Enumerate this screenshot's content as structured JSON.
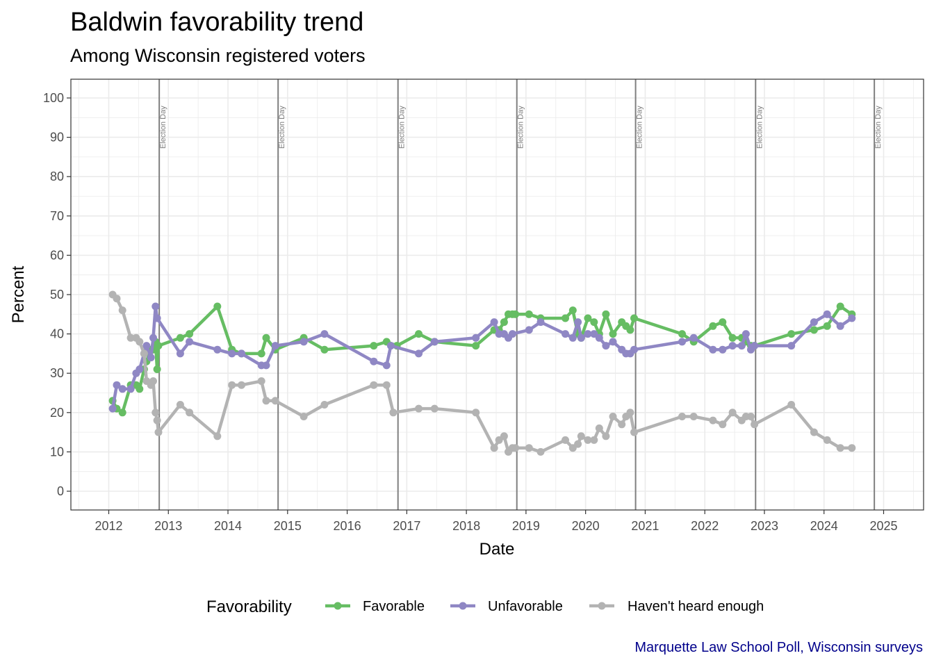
{
  "chart_data": {
    "type": "line",
    "title": "Baldwin favorability trend",
    "subtitle": "Among Wisconsin registered voters",
    "caption": "Marquette Law School Poll, Wisconsin surveys",
    "xlabel": "Date",
    "ylabel": "Percent",
    "ylim": [
      0,
      100
    ],
    "yticks": [
      0,
      10,
      20,
      30,
      40,
      50,
      60,
      70,
      80,
      90,
      100
    ],
    "xticks": [
      "2012",
      "2013",
      "2014",
      "2015",
      "2016",
      "2017",
      "2018",
      "2019",
      "2020",
      "2021",
      "2022",
      "2023",
      "2024",
      "2025"
    ],
    "grid": true,
    "legend_title": "Favorability",
    "legend_position": "bottom",
    "annotations": [
      {
        "label": "Election Day",
        "x": "2012-11-06"
      },
      {
        "label": "Election Day",
        "x": "2014-11-04"
      },
      {
        "label": "Election Day",
        "x": "2016-11-08"
      },
      {
        "label": "Election Day",
        "x": "2018-11-06"
      },
      {
        "label": "Election Day",
        "x": "2020-11-03"
      },
      {
        "label": "Election Day",
        "x": "2022-11-08"
      },
      {
        "label": "Election Day",
        "x": "2024-11-05"
      }
    ],
    "series": [
      {
        "name": "Favorable",
        "color": "#66bd63",
        "points": [
          [
            "2012-01-25",
            23
          ],
          [
            "2012-02-19",
            21
          ],
          [
            "2012-03-25",
            20
          ],
          [
            "2012-05-15",
            27
          ],
          [
            "2012-06-17",
            27
          ],
          [
            "2012-07-08",
            26
          ],
          [
            "2012-08-05",
            31
          ],
          [
            "2012-08-20",
            33
          ],
          [
            "2012-09-16",
            36
          ],
          [
            "2012-09-30",
            36
          ],
          [
            "2012-10-14",
            38
          ],
          [
            "2012-10-24",
            31
          ],
          [
            "2012-11-01",
            37
          ],
          [
            "2013-03-15",
            39
          ],
          [
            "2013-05-10",
            40
          ],
          [
            "2013-10-28",
            47
          ],
          [
            "2014-01-25",
            36
          ],
          [
            "2014-03-25",
            35
          ],
          [
            "2014-07-25",
            35
          ],
          [
            "2014-08-23",
            39
          ],
          [
            "2014-10-18",
            36
          ],
          [
            "2015-04-10",
            39
          ],
          [
            "2015-08-15",
            36
          ],
          [
            "2016-06-12",
            37
          ],
          [
            "2016-08-30",
            38
          ],
          [
            "2016-11-01",
            37
          ],
          [
            "2017-03-15",
            40
          ],
          [
            "2017-06-20",
            38
          ],
          [
            "2018-02-28",
            37
          ],
          [
            "2018-06-20",
            41
          ],
          [
            "2018-07-20",
            41
          ],
          [
            "2018-08-20",
            43
          ],
          [
            "2018-09-15",
            45
          ],
          [
            "2018-10-10",
            45
          ],
          [
            "2018-10-28",
            45
          ],
          [
            "2019-01-20",
            45
          ],
          [
            "2019-04-01",
            44
          ],
          [
            "2019-08-30",
            44
          ],
          [
            "2019-10-15",
            46
          ],
          [
            "2019-11-15",
            40
          ],
          [
            "2019-12-05",
            39
          ],
          [
            "2020-01-15",
            44
          ],
          [
            "2020-02-22",
            43
          ],
          [
            "2020-03-25",
            40
          ],
          [
            "2020-05-05",
            45
          ],
          [
            "2020-06-17",
            40
          ],
          [
            "2020-08-10",
            43
          ],
          [
            "2020-09-05",
            42
          ],
          [
            "2020-10-01",
            41
          ],
          [
            "2020-10-25",
            44
          ],
          [
            "2021-08-15",
            40
          ],
          [
            "2021-10-25",
            38
          ],
          [
            "2022-02-20",
            42
          ],
          [
            "2022-04-20",
            43
          ],
          [
            "2022-06-20",
            39
          ],
          [
            "2022-08-15",
            39
          ],
          [
            "2022-09-10",
            38
          ],
          [
            "2022-10-10",
            37
          ],
          [
            "2022-11-01",
            37
          ],
          [
            "2023-06-15",
            40
          ],
          [
            "2023-11-01",
            41
          ],
          [
            "2024-01-20",
            42
          ],
          [
            "2024-04-10",
            47
          ],
          [
            "2024-06-20",
            45
          ]
        ]
      },
      {
        "name": "Unfavorable",
        "color": "#8f87c4",
        "points": [
          [
            "2012-01-25",
            21
          ],
          [
            "2012-02-19",
            27
          ],
          [
            "2012-03-25",
            26
          ],
          [
            "2012-05-15",
            26
          ],
          [
            "2012-06-17",
            30
          ],
          [
            "2012-07-08",
            31
          ],
          [
            "2012-08-05",
            35
          ],
          [
            "2012-08-20",
            37
          ],
          [
            "2012-09-16",
            34
          ],
          [
            "2012-09-30",
            39
          ],
          [
            "2012-10-14",
            47
          ],
          [
            "2012-10-24",
            44
          ],
          [
            "2013-03-15",
            35
          ],
          [
            "2013-05-10",
            38
          ],
          [
            "2013-10-28",
            36
          ],
          [
            "2014-01-25",
            35
          ],
          [
            "2014-03-25",
            35
          ],
          [
            "2014-07-25",
            32
          ],
          [
            "2014-08-23",
            32
          ],
          [
            "2014-10-18",
            37
          ],
          [
            "2015-04-10",
            38
          ],
          [
            "2015-08-15",
            40
          ],
          [
            "2016-06-12",
            33
          ],
          [
            "2016-08-30",
            32
          ],
          [
            "2016-09-25",
            37
          ],
          [
            "2017-03-15",
            35
          ],
          [
            "2017-06-20",
            38
          ],
          [
            "2018-02-28",
            39
          ],
          [
            "2018-06-20",
            43
          ],
          [
            "2018-07-20",
            40
          ],
          [
            "2018-08-20",
            40
          ],
          [
            "2018-09-15",
            39
          ],
          [
            "2018-10-10",
            40
          ],
          [
            "2019-01-20",
            41
          ],
          [
            "2019-04-01",
            43
          ],
          [
            "2019-08-30",
            40
          ],
          [
            "2019-10-15",
            39
          ],
          [
            "2019-11-15",
            43
          ],
          [
            "2019-12-05",
            39
          ],
          [
            "2020-01-15",
            40
          ],
          [
            "2020-02-22",
            40
          ],
          [
            "2020-03-25",
            39
          ],
          [
            "2020-05-05",
            37
          ],
          [
            "2020-06-17",
            38
          ],
          [
            "2020-08-10",
            36
          ],
          [
            "2020-09-05",
            35
          ],
          [
            "2020-10-01",
            35
          ],
          [
            "2020-10-25",
            36
          ],
          [
            "2021-08-15",
            38
          ],
          [
            "2021-10-25",
            39
          ],
          [
            "2022-02-20",
            36
          ],
          [
            "2022-04-20",
            36
          ],
          [
            "2022-06-20",
            37
          ],
          [
            "2022-08-15",
            37
          ],
          [
            "2022-09-10",
            40
          ],
          [
            "2022-10-10",
            36
          ],
          [
            "2022-11-01",
            37
          ],
          [
            "2023-06-15",
            37
          ],
          [
            "2023-11-01",
            43
          ],
          [
            "2024-01-20",
            45
          ],
          [
            "2024-04-10",
            42
          ],
          [
            "2024-06-20",
            44
          ]
        ]
      },
      {
        "name": "Haven't heard enough",
        "color": "#b3b3b3",
        "points": [
          [
            "2012-01-25",
            50
          ],
          [
            "2012-02-19",
            49
          ],
          [
            "2012-03-25",
            46
          ],
          [
            "2012-05-15",
            39
          ],
          [
            "2012-06-17",
            39
          ],
          [
            "2012-07-08",
            38
          ],
          [
            "2012-08-05",
            35
          ],
          [
            "2012-08-20",
            28
          ],
          [
            "2012-09-16",
            27
          ],
          [
            "2012-09-30",
            28
          ],
          [
            "2012-10-14",
            20
          ],
          [
            "2012-10-24",
            18
          ],
          [
            "2012-11-01",
            15
          ],
          [
            "2013-03-15",
            22
          ],
          [
            "2013-05-10",
            20
          ],
          [
            "2013-10-28",
            14
          ],
          [
            "2014-01-25",
            27
          ],
          [
            "2014-03-25",
            27
          ],
          [
            "2014-07-25",
            28
          ],
          [
            "2014-08-23",
            23
          ],
          [
            "2014-10-18",
            23
          ],
          [
            "2015-04-10",
            19
          ],
          [
            "2015-08-15",
            22
          ],
          [
            "2016-06-12",
            27
          ],
          [
            "2016-08-30",
            27
          ],
          [
            "2016-10-10",
            20
          ],
          [
            "2017-03-15",
            21
          ],
          [
            "2017-06-20",
            21
          ],
          [
            "2018-02-28",
            20
          ],
          [
            "2018-06-20",
            11
          ],
          [
            "2018-07-20",
            13
          ],
          [
            "2018-08-20",
            14
          ],
          [
            "2018-09-15",
            10
          ],
          [
            "2018-10-10",
            11
          ],
          [
            "2018-10-28",
            11
          ],
          [
            "2019-01-20",
            11
          ],
          [
            "2019-04-01",
            10
          ],
          [
            "2019-08-30",
            13
          ],
          [
            "2019-10-15",
            11
          ],
          [
            "2019-11-15",
            12
          ],
          [
            "2019-12-05",
            14
          ],
          [
            "2020-01-15",
            13
          ],
          [
            "2020-02-22",
            13
          ],
          [
            "2020-03-25",
            16
          ],
          [
            "2020-05-05",
            14
          ],
          [
            "2020-06-17",
            19
          ],
          [
            "2020-08-10",
            17
          ],
          [
            "2020-09-05",
            19
          ],
          [
            "2020-10-01",
            20
          ],
          [
            "2020-10-25",
            15
          ],
          [
            "2021-08-15",
            19
          ],
          [
            "2021-10-25",
            19
          ],
          [
            "2022-02-20",
            18
          ],
          [
            "2022-04-20",
            17
          ],
          [
            "2022-06-20",
            20
          ],
          [
            "2022-08-15",
            18
          ],
          [
            "2022-09-10",
            19
          ],
          [
            "2022-10-10",
            19
          ],
          [
            "2022-11-01",
            17
          ],
          [
            "2023-06-15",
            22
          ],
          [
            "2023-11-01",
            15
          ],
          [
            "2024-01-20",
            13
          ],
          [
            "2024-04-10",
            11
          ],
          [
            "2024-06-20",
            11
          ]
        ]
      }
    ]
  }
}
